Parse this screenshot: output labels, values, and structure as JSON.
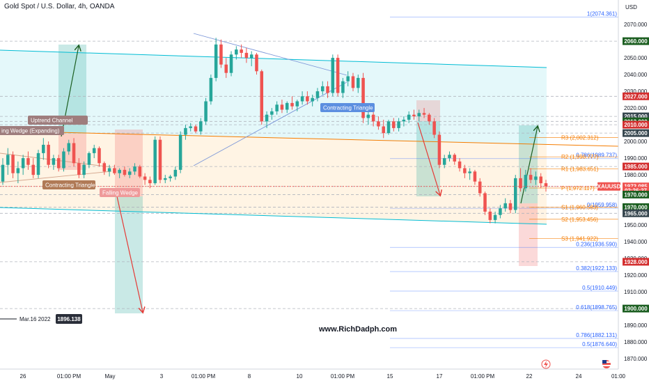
{
  "header": {
    "title": "Gold Spot / U.S. Dollar, 4h, OANDA",
    "currency": "USD"
  },
  "watermark": "www.RichDadph.com",
  "colors": {
    "up": "#26a69a",
    "down": "#ef5350",
    "fib": "#2962ff",
    "pivot": "#f57c00",
    "channel": "#00bcd4"
  },
  "chart_data": {
    "type": "candlestick",
    "symbol": "XAUUSD",
    "x_ticks": [
      "26",
      "01:00 PM",
      "May",
      "3",
      "01:00 PM",
      "8",
      "10",
      "01:00 PM",
      "15",
      "17",
      "01:00 PM",
      "22",
      "24",
      "01:00"
    ],
    "y_ticks": [
      1870,
      1880,
      1890,
      1900,
      1910,
      1920,
      1930,
      1940,
      1950,
      1960,
      1970,
      1980,
      1990,
      2000,
      2010,
      2020,
      2030,
      2040,
      2050,
      2060,
      2070
    ],
    "ylim": [
      1866,
      2080
    ],
    "candles": [
      [
        1976.0,
        1990.0,
        1974.0,
        1986.0
      ],
      [
        1986.0,
        1996.0,
        1980.0,
        1992.0
      ],
      [
        1992.0,
        1994.0,
        1978.0,
        1981.0
      ],
      [
        1981.0,
        1988.0,
        1975.0,
        1984.0
      ],
      [
        1984.0,
        1992.0,
        1980.0,
        1990.0
      ],
      [
        1990.0,
        1994.0,
        1983.0,
        1986.0
      ],
      [
        1986.0,
        1990.0,
        1978.0,
        1980.0
      ],
      [
        1980.0,
        1995.0,
        1978.0,
        1993.0
      ],
      [
        1993.0,
        2002.0,
        1989.0,
        1998.0
      ],
      [
        1998.0,
        2000.0,
        1984.0,
        1986.0
      ],
      [
        1986.0,
        1992.0,
        1983.0,
        1990.0
      ],
      [
        1990.0,
        1992.0,
        1982.0,
        1984.0
      ],
      [
        1984.0,
        1996.0,
        1982.0,
        1994.0
      ],
      [
        1994.0,
        2001.0,
        1992.0,
        1999.0
      ],
      [
        1999.0,
        2002.0,
        1985.0,
        1987.0
      ],
      [
        1987.0,
        1990.0,
        1978.0,
        1980.0
      ],
      [
        1980.0,
        1988.0,
        1978.0,
        1986.0
      ],
      [
        1986.0,
        1994.0,
        1984.0,
        1993.0
      ],
      [
        1993.0,
        1998.0,
        1990.0,
        1996.0
      ],
      [
        1996.0,
        1997.0,
        1985.0,
        1987.0
      ],
      [
        1987.0,
        1988.0,
        1980.0,
        1982.0
      ],
      [
        1982.0,
        1986.0,
        1979.0,
        1984.0
      ],
      [
        1984.0,
        1986.0,
        1980.0,
        1981.0
      ],
      [
        1981.0,
        1984.0,
        1978.0,
        1983.0
      ],
      [
        1983.0,
        1985.0,
        1979.0,
        1980.0
      ],
      [
        1980.0,
        1984.0,
        1978.0,
        1982.0
      ],
      [
        1982.0,
        1987.0,
        1980.0,
        1985.0
      ],
      [
        1985.0,
        1986.0,
        1978.0,
        1979.0
      ],
      [
        1979.0,
        1981.0,
        1974.0,
        1977.0
      ],
      [
        1977.0,
        1979.0,
        1972.0,
        1975.0
      ],
      [
        1975.0,
        2003.0,
        1974.0,
        2001.0
      ],
      [
        2001.0,
        2003.0,
        1975.0,
        1977.0
      ],
      [
        1977.0,
        1980.0,
        1975.0,
        1978.0
      ],
      [
        1978.0,
        1980.0,
        1976.0,
        1979.0
      ],
      [
        1979.0,
        1985.0,
        1977.0,
        1983.0
      ],
      [
        1983.0,
        2006.0,
        1981.0,
        2004.0
      ],
      [
        2004.0,
        2010.0,
        2001.0,
        2008.0
      ],
      [
        2008.0,
        2011.0,
        2006.0,
        2009.0
      ],
      [
        2009.0,
        2010.0,
        2005.0,
        2006.0
      ],
      [
        2006.0,
        2014.0,
        2004.0,
        2012.0
      ],
      [
        2012.0,
        2026.0,
        2010.0,
        2024.0
      ],
      [
        2024.0,
        2040.0,
        2022.0,
        2038.0
      ],
      [
        2038.0,
        2062.0,
        2036.0,
        2058.0
      ],
      [
        2058.0,
        2061.0,
        2044.0,
        2046.0
      ],
      [
        2046.0,
        2050.0,
        2038.0,
        2041.0
      ],
      [
        2041.0,
        2054.0,
        2039.0,
        2052.0
      ],
      [
        2052.0,
        2057.0,
        2049.0,
        2055.0
      ],
      [
        2055.0,
        2058.0,
        2050.0,
        2053.0
      ],
      [
        2053.0,
        2056.0,
        2047.0,
        2050.0
      ],
      [
        2050.0,
        2054.0,
        2045.0,
        2052.0
      ],
      [
        2052.0,
        2053.0,
        2040.0,
        2042.0
      ],
      [
        2042.0,
        2043.0,
        2010.0,
        2012.0
      ],
      [
        2012.0,
        2018.0,
        2008.0,
        2016.0
      ],
      [
        2016.0,
        2020.0,
        2013.0,
        2018.0
      ],
      [
        2018.0,
        2024.0,
        2016.0,
        2022.0
      ],
      [
        2022.0,
        2025.0,
        2017.0,
        2019.0
      ],
      [
        2019.0,
        2024.0,
        2017.0,
        2023.0
      ],
      [
        2023.0,
        2027.0,
        2019.0,
        2021.0
      ],
      [
        2021.0,
        2025.0,
        2018.0,
        2024.0
      ],
      [
        2024.0,
        2030.0,
        2022.0,
        2027.0
      ],
      [
        2027.0,
        2030.0,
        2022.0,
        2024.0
      ],
      [
        2024.0,
        2028.0,
        2021.0,
        2026.0
      ],
      [
        2026.0,
        2032.0,
        2024.0,
        2030.0
      ],
      [
        2030.0,
        2036.0,
        2028.0,
        2033.0
      ],
      [
        2033.0,
        2036.0,
        2026.0,
        2029.0
      ],
      [
        2029.0,
        2052.0,
        2027.0,
        2050.0
      ],
      [
        2050.0,
        2052.0,
        2027.0,
        2029.0
      ],
      [
        2029.0,
        2038.0,
        2026.0,
        2036.0
      ],
      [
        2036.0,
        2042.0,
        2033.0,
        2039.0
      ],
      [
        2039.0,
        2041.0,
        2030.0,
        2032.0
      ],
      [
        2032.0,
        2040.0,
        2029.0,
        2038.0
      ],
      [
        2038.0,
        2041.0,
        2011.0,
        2014.0
      ],
      [
        2014.0,
        2018.0,
        2010.0,
        2016.0
      ],
      [
        2016.0,
        2019.0,
        2009.0,
        2012.0
      ],
      [
        2012.0,
        2015.0,
        2007.0,
        2009.0
      ],
      [
        2009.0,
        2013.0,
        2002.0,
        2005.0
      ],
      [
        2005.0,
        2013.0,
        2004.0,
        2012.0
      ],
      [
        2012.0,
        2014.0,
        2006.0,
        2008.0
      ],
      [
        2008.0,
        2014.0,
        2006.0,
        2012.0
      ],
      [
        2012.0,
        2015.0,
        2009.0,
        2013.0
      ],
      [
        2013.0,
        2018.0,
        2011.0,
        2016.0
      ],
      [
        2016.0,
        2019.0,
        2013.0,
        2015.0
      ],
      [
        2015.0,
        2019.0,
        2012.0,
        2017.0
      ],
      [
        2017.0,
        2020.0,
        2014.0,
        2016.0
      ],
      [
        2016.0,
        2017.0,
        2010.0,
        2012.0
      ],
      [
        2012.0,
        2014.0,
        2002.0,
        2004.0
      ],
      [
        2004.0,
        2006.0,
        1984.0,
        1986.0
      ],
      [
        1986.0,
        1992.0,
        1984.0,
        1990.0
      ],
      [
        1990.0,
        1994.0,
        1988.0,
        1992.0
      ],
      [
        1992.0,
        1993.0,
        1986.0,
        1988.0
      ],
      [
        1988.0,
        1990.0,
        1982.0,
        1984.0
      ],
      [
        1984.0,
        1986.0,
        1978.0,
        1981.0
      ],
      [
        1981.0,
        1984.0,
        1977.0,
        1982.0
      ],
      [
        1982.0,
        1983.0,
        1974.0,
        1976.0
      ],
      [
        1976.0,
        1978.0,
        1967.0,
        1969.0
      ],
      [
        1969.0,
        1970.0,
        1956.0,
        1958.0
      ],
      [
        1958.0,
        1960.0,
        1951.0,
        1953.0
      ],
      [
        1953.0,
        1958.0,
        1951.0,
        1956.0
      ],
      [
        1956.0,
        1962.0,
        1954.0,
        1960.0
      ],
      [
        1960.0,
        1966.0,
        1958.0,
        1963.0
      ],
      [
        1963.0,
        1965.0,
        1957.0,
        1959.0
      ],
      [
        1959.0,
        1980.0,
        1957.0,
        1978.0
      ],
      [
        1978.0,
        1984.0,
        1970.0,
        1972.0
      ],
      [
        1972.0,
        1983.0,
        1970.0,
        1980.0
      ],
      [
        1980.0,
        1984.0,
        1975.0,
        1977.0
      ],
      [
        1977.0,
        1982.0,
        1974.0,
        1979.0
      ],
      [
        1979.0,
        1981.0,
        1972.0,
        1975.0
      ],
      [
        1975.0,
        1977.0,
        1970.0,
        1973.085
      ]
    ],
    "fib_levels": [
      {
        "label": "1(2074.361)",
        "value": 2074.361
      },
      {
        "label": "0.786(1989.737)",
        "value": 1989.737
      },
      {
        "label": "0(1959.958)",
        "value": 1959.958
      },
      {
        "label": "0.236(1936.590)",
        "value": 1936.59
      },
      {
        "label": "0.382(1922.133)",
        "value": 1922.133
      },
      {
        "label": "0.5(1910.449)",
        "value": 1910.449
      },
      {
        "label": "0.618(1898.765)",
        "value": 1898.765
      },
      {
        "label": "0.786(1882.131)",
        "value": 1882.131
      },
      {
        "label": "0.5(1876.640)",
        "value": 1876.64
      }
    ],
    "pivots": [
      {
        "label": "R3 (2,002.312)",
        "value": 2002.312
      },
      {
        "label": "R2 (1,990.777)",
        "value": 1990.777
      },
      {
        "label": "R1 (1,983.651)",
        "value": 1983.651
      },
      {
        "label": "P (1,972.117)",
        "value": 1972.117
      },
      {
        "label": "S1 (1,960.583)",
        "value": 1960.583
      },
      {
        "label": "S2 (1,953.456)",
        "value": 1953.456
      },
      {
        "label": "S3 (1,941.922)",
        "value": 1941.922
      }
    ],
    "price_tags": [
      {
        "label": "2060.000",
        "value": 2060,
        "color": "#1b5e20"
      },
      {
        "label": "2027.000",
        "value": 2027,
        "color": "#d32f2f"
      },
      {
        "label": "2015.000",
        "value": 2015,
        "color": "#37474f"
      },
      {
        "label": "2012.000",
        "value": 2012,
        "color": "#1b5e20"
      },
      {
        "label": "2010.000",
        "value": 2010,
        "color": "#d32f2f"
      },
      {
        "label": "2005.000",
        "value": 2005,
        "color": "#37474f"
      },
      {
        "label": "1985.000",
        "value": 1985,
        "color": "#d32f2f"
      },
      {
        "label": "1973.085",
        "value": 1973.085,
        "color": "#ef5350"
      },
      {
        "label": "02:26:27",
        "value": 1970.6,
        "color": "#ef5350"
      },
      {
        "label": "1970.000",
        "value": 1968.2,
        "color": "#1b5e20"
      },
      {
        "label": "1970.000",
        "value": 1960.7,
        "color": "#1b5e20"
      },
      {
        "label": "1965.000",
        "value": 1957.0,
        "color": "#37474f"
      },
      {
        "label": "1928.000",
        "value": 1928,
        "color": "#d32f2f"
      },
      {
        "label": "1900.000",
        "value": 1900,
        "color": "#1b5e20"
      }
    ],
    "current_price_symbol_label": "XAUUSD",
    "annotations": [
      {
        "text": "Uptrend Channel",
        "color": "#9e7d7d"
      },
      {
        "text": "ing Wedge (Expanding)",
        "color": "#9e7d7d"
      },
      {
        "text": "Contracting Triangle",
        "color": "#b07a56"
      },
      {
        "text": "Falling Wedge",
        "color": "#ef9a9a"
      },
      {
        "text": "Contracting Triangle",
        "color": "#5c8fe0"
      }
    ],
    "date_marker": {
      "label": "Mar.16 2022",
      "value_label": "1896.138"
    }
  }
}
